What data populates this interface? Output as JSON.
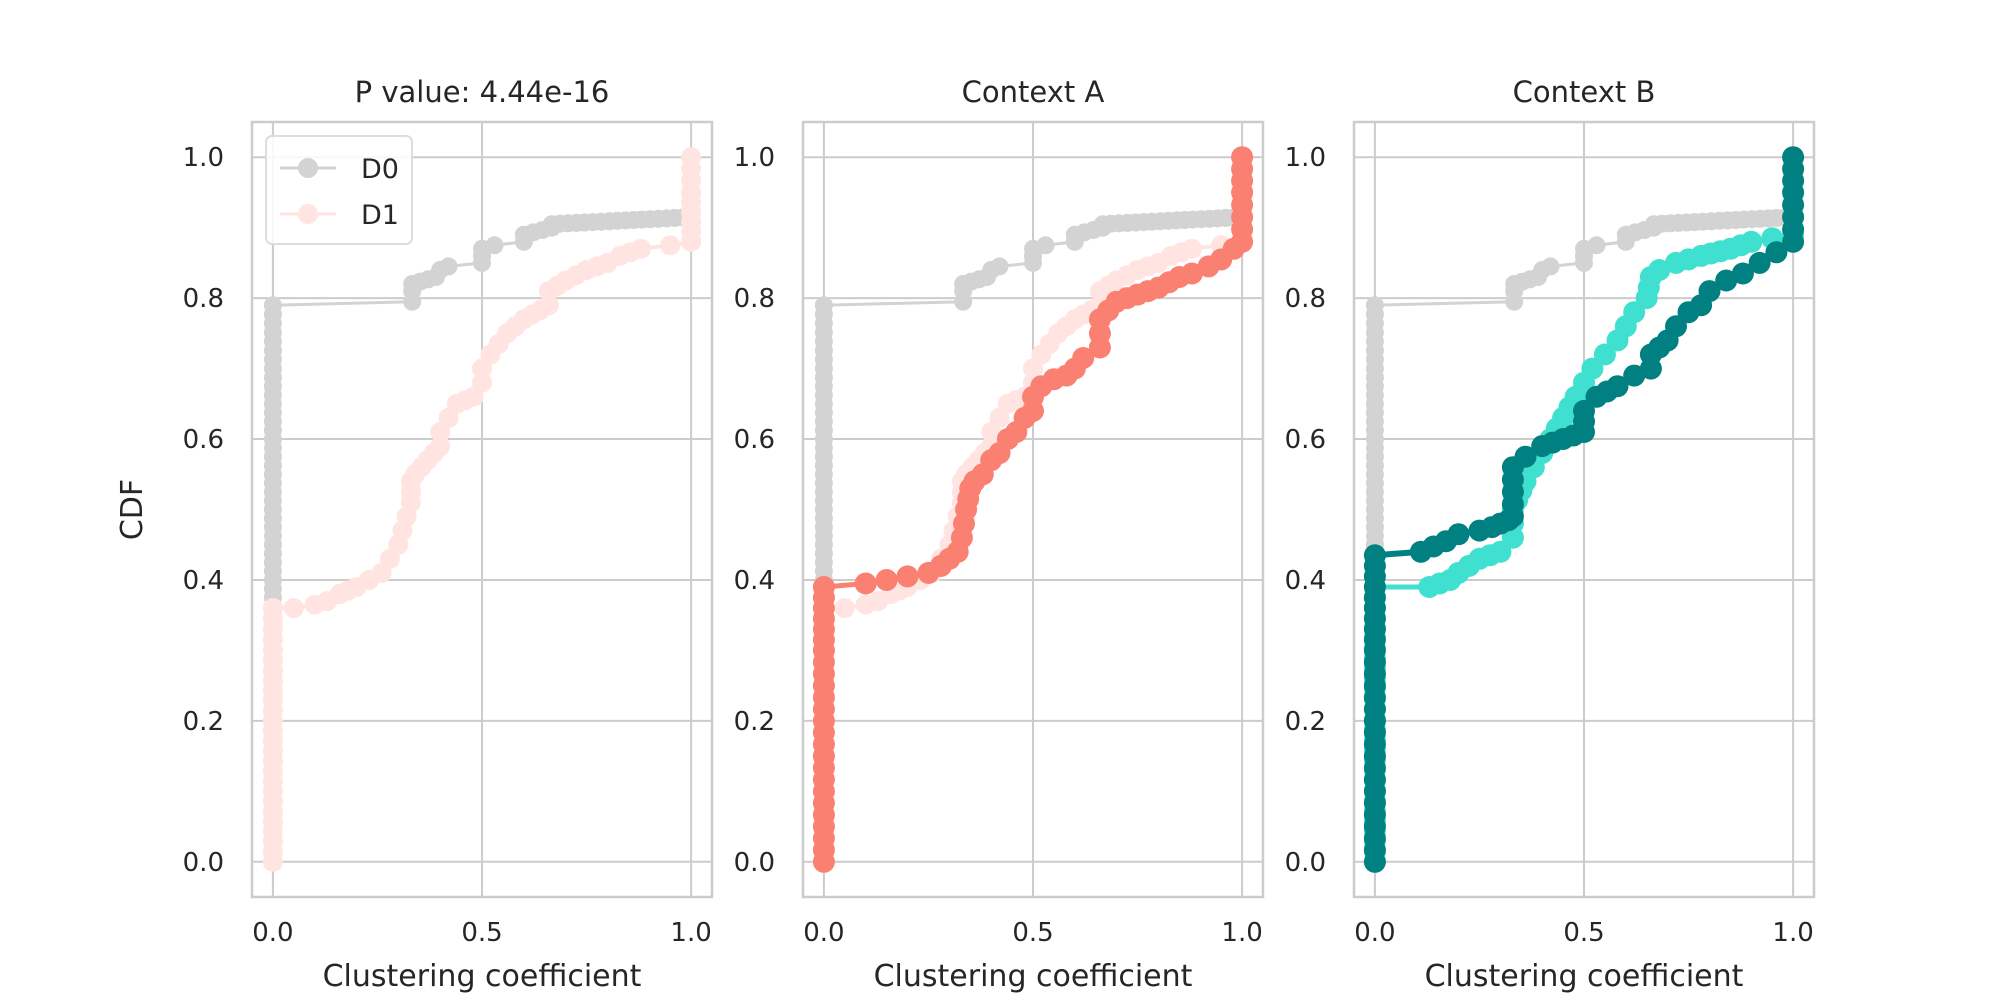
{
  "chart_data": [
    {
      "type": "line",
      "title": "P value: 4.44e-16",
      "xlabel": "Clustering coefficient",
      "ylabel": "CDF",
      "xlim": [
        -0.05,
        1.05
      ],
      "ylim": [
        -0.05,
        1.05
      ],
      "xticks": [
        "0.0",
        "0.5",
        "1.0"
      ],
      "yticks": [
        "0.0",
        "0.2",
        "0.4",
        "0.6",
        "0.8",
        "1.0"
      ],
      "grid": true,
      "legend": {
        "position": "top-left",
        "entries": [
          "D0",
          "D1"
        ]
      },
      "series": [
        {
          "name": "D0",
          "color": "#d3d3d3",
          "marker_size": 9,
          "line_width": 3,
          "x": [
            0,
            0,
            0,
            0,
            0,
            0,
            0,
            0,
            0,
            0.333,
            0.333,
            0.333,
            0.39,
            0.4,
            0.42,
            0.5,
            0.5,
            0.5,
            0.53,
            0.6,
            0.6,
            0.667,
            0.667,
            1.0
          ],
          "y": [
            0.0,
            0.1,
            0.2,
            0.3,
            0.4,
            0.5,
            0.6,
            0.7,
            0.79,
            0.795,
            0.81,
            0.82,
            0.83,
            0.84,
            0.845,
            0.85,
            0.86,
            0.87,
            0.875,
            0.88,
            0.89,
            0.9,
            0.905,
            0.915
          ]
        },
        {
          "name": "D1",
          "color": "#ffe4e1",
          "marker_size": 10,
          "line_width": 4,
          "x": [
            0,
            0,
            0,
            0,
            0,
            0,
            0,
            0.05,
            0.1,
            0.13,
            0.16,
            0.2,
            0.23,
            0.26,
            0.28,
            0.3,
            0.31,
            0.32,
            0.33,
            0.33,
            0.34,
            0.37,
            0.4,
            0.4,
            0.42,
            0.44,
            0.48,
            0.5,
            0.5,
            0.52,
            0.56,
            0.6,
            0.66,
            0.66,
            0.7,
            0.75,
            0.8,
            0.83,
            0.88,
            0.95,
            1.0,
            1.0,
            1.0
          ],
          "y": [
            0.0,
            0.1,
            0.2,
            0.3,
            0.36,
            0.36,
            0.36,
            0.36,
            0.365,
            0.37,
            0.38,
            0.39,
            0.4,
            0.41,
            0.43,
            0.45,
            0.47,
            0.49,
            0.51,
            0.54,
            0.55,
            0.57,
            0.59,
            0.61,
            0.63,
            0.65,
            0.66,
            0.68,
            0.7,
            0.72,
            0.75,
            0.77,
            0.79,
            0.81,
            0.825,
            0.84,
            0.85,
            0.86,
            0.87,
            0.875,
            0.88,
            0.95,
            1.0
          ]
        }
      ]
    },
    {
      "type": "line",
      "title": "Context A",
      "xlabel": "Clustering coefficient",
      "ylabel": "",
      "xlim": [
        -0.05,
        1.05
      ],
      "ylim": [
        -0.05,
        1.05
      ],
      "xticks": [
        "0.0",
        "0.5",
        "1.0"
      ],
      "yticks": [
        "0.0",
        "0.2",
        "0.4",
        "0.6",
        "0.8",
        "1.0"
      ],
      "grid": true,
      "series": [
        {
          "name": "",
          "color": "#d3d3d3",
          "marker_size": 9,
          "line_width": 3,
          "x": [
            0,
            0,
            0,
            0,
            0,
            0,
            0,
            0,
            0,
            0.333,
            0.333,
            0.333,
            0.39,
            0.4,
            0.42,
            0.5,
            0.5,
            0.5,
            0.53,
            0.6,
            0.6,
            0.667,
            0.667,
            1.0
          ],
          "y": [
            0.0,
            0.1,
            0.2,
            0.3,
            0.4,
            0.5,
            0.6,
            0.7,
            0.79,
            0.795,
            0.81,
            0.82,
            0.83,
            0.84,
            0.845,
            0.85,
            0.86,
            0.87,
            0.875,
            0.88,
            0.89,
            0.9,
            0.905,
            0.915
          ]
        },
        {
          "name": "",
          "color": "#ffe4e1",
          "marker_size": 10,
          "line_width": 4,
          "x": [
            0,
            0,
            0,
            0,
            0,
            0,
            0,
            0.05,
            0.1,
            0.13,
            0.16,
            0.2,
            0.23,
            0.26,
            0.28,
            0.3,
            0.31,
            0.32,
            0.33,
            0.33,
            0.34,
            0.37,
            0.4,
            0.4,
            0.42,
            0.44,
            0.48,
            0.5,
            0.5,
            0.52,
            0.56,
            0.6,
            0.66,
            0.66,
            0.7,
            0.75,
            0.8,
            0.83,
            0.88,
            0.95,
            1.0,
            1.0,
            1.0
          ],
          "y": [
            0.0,
            0.1,
            0.2,
            0.3,
            0.36,
            0.36,
            0.36,
            0.36,
            0.365,
            0.37,
            0.38,
            0.39,
            0.4,
            0.41,
            0.43,
            0.45,
            0.47,
            0.49,
            0.51,
            0.54,
            0.55,
            0.57,
            0.59,
            0.61,
            0.63,
            0.65,
            0.66,
            0.68,
            0.7,
            0.72,
            0.75,
            0.77,
            0.79,
            0.81,
            0.825,
            0.84,
            0.85,
            0.86,
            0.87,
            0.875,
            0.88,
            0.95,
            1.0
          ]
        },
        {
          "name": "",
          "color": "#fa8072",
          "marker_size": 11,
          "line_width": 5,
          "x": [
            0,
            0,
            0,
            0,
            0,
            0,
            0,
            0,
            0.1,
            0.15,
            0.2,
            0.25,
            0.28,
            0.3,
            0.32,
            0.33,
            0.34,
            0.35,
            0.36,
            0.38,
            0.4,
            0.42,
            0.44,
            0.46,
            0.48,
            0.5,
            0.5,
            0.52,
            0.55,
            0.58,
            0.6,
            0.62,
            0.66,
            0.66,
            0.7,
            0.75,
            0.8,
            0.85,
            0.88,
            0.92,
            0.95,
            0.98,
            1.0,
            1.0,
            1.0
          ],
          "y": [
            0.0,
            0.05,
            0.1,
            0.15,
            0.2,
            0.25,
            0.3,
            0.39,
            0.395,
            0.4,
            0.405,
            0.41,
            0.42,
            0.43,
            0.44,
            0.46,
            0.5,
            0.53,
            0.54,
            0.55,
            0.57,
            0.58,
            0.6,
            0.61,
            0.63,
            0.64,
            0.66,
            0.675,
            0.685,
            0.69,
            0.7,
            0.715,
            0.73,
            0.77,
            0.795,
            0.805,
            0.815,
            0.83,
            0.835,
            0.845,
            0.855,
            0.87,
            0.88,
            0.95,
            1.0
          ]
        }
      ]
    },
    {
      "type": "line",
      "title": "Context B",
      "xlabel": "Clustering coefficient",
      "ylabel": "",
      "xlim": [
        -0.05,
        1.05
      ],
      "ylim": [
        -0.05,
        1.05
      ],
      "xticks": [
        "0.0",
        "0.5",
        "1.0"
      ],
      "yticks": [
        "0.0",
        "0.2",
        "0.4",
        "0.6",
        "0.8",
        "1.0"
      ],
      "grid": true,
      "series": [
        {
          "name": "",
          "color": "#d3d3d3",
          "marker_size": 9,
          "line_width": 3,
          "x": [
            0,
            0,
            0,
            0,
            0,
            0,
            0,
            0,
            0,
            0.333,
            0.333,
            0.333,
            0.39,
            0.4,
            0.42,
            0.5,
            0.5,
            0.5,
            0.53,
            0.6,
            0.6,
            0.667,
            0.667,
            1.0
          ],
          "y": [
            0.0,
            0.1,
            0.2,
            0.3,
            0.4,
            0.5,
            0.6,
            0.7,
            0.79,
            0.795,
            0.81,
            0.82,
            0.83,
            0.84,
            0.845,
            0.85,
            0.86,
            0.87,
            0.875,
            0.88,
            0.89,
            0.9,
            0.905,
            0.915
          ]
        },
        {
          "name": "",
          "color": "#40e0d0",
          "marker_size": 11,
          "line_width": 5,
          "x": [
            0,
            0,
            0.13,
            0.18,
            0.2,
            0.25,
            0.3,
            0.33,
            0.33,
            0.36,
            0.38,
            0.4,
            0.42,
            0.45,
            0.48,
            0.5,
            0.52,
            0.55,
            0.58,
            0.6,
            0.62,
            0.65,
            0.66,
            0.68,
            0.72,
            0.78,
            0.85,
            0.9,
            0.95,
            1.0
          ],
          "y": [
            0.0,
            0.39,
            0.39,
            0.4,
            0.41,
            0.43,
            0.44,
            0.46,
            0.5,
            0.54,
            0.56,
            0.58,
            0.6,
            0.63,
            0.66,
            0.68,
            0.7,
            0.72,
            0.74,
            0.76,
            0.78,
            0.8,
            0.83,
            0.84,
            0.85,
            0.86,
            0.87,
            0.88,
            0.885,
            0.89
          ]
        },
        {
          "name": "",
          "color": "#008080",
          "marker_size": 11,
          "line_width": 6,
          "x": [
            0,
            0,
            0,
            0,
            0,
            0,
            0,
            0,
            0.11,
            0.17,
            0.2,
            0.25,
            0.28,
            0.3,
            0.32,
            0.33,
            0.33,
            0.36,
            0.4,
            0.45,
            0.5,
            0.5,
            0.53,
            0.58,
            0.62,
            0.66,
            0.66,
            0.7,
            0.72,
            0.75,
            0.78,
            0.8,
            0.84,
            0.88,
            0.92,
            0.96,
            1.0,
            1.0,
            1.0
          ],
          "y": [
            0.0,
            0.05,
            0.1,
            0.15,
            0.2,
            0.25,
            0.3,
            0.435,
            0.44,
            0.455,
            0.465,
            0.47,
            0.475,
            0.48,
            0.485,
            0.49,
            0.56,
            0.575,
            0.59,
            0.6,
            0.61,
            0.64,
            0.66,
            0.675,
            0.69,
            0.7,
            0.72,
            0.74,
            0.76,
            0.78,
            0.79,
            0.81,
            0.825,
            0.835,
            0.85,
            0.865,
            0.88,
            0.95,
            1.0
          ]
        }
      ]
    }
  ]
}
